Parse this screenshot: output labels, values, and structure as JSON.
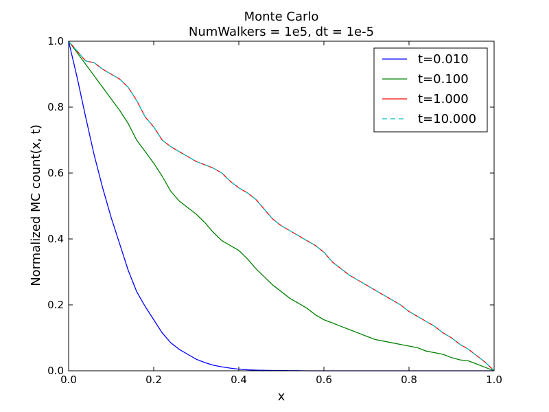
{
  "chart_data": {
    "type": "line",
    "title": "Monte Carlo",
    "subtitle": "NumWalkers = 1e5, dt = 1e-5",
    "xlabel": "x",
    "ylabel": "Normalized MC count(x, t)",
    "xlim": [
      0.0,
      1.0
    ],
    "ylim": [
      0.0,
      1.0
    ],
    "xticks": [
      "0.0",
      "0.2",
      "0.4",
      "0.6",
      "0.8",
      "1.0"
    ],
    "yticks": [
      "0.0",
      "0.2",
      "0.4",
      "0.6",
      "0.8",
      "1.0"
    ],
    "grid": false,
    "legend_position": "top-right",
    "x": [
      0.0,
      0.02,
      0.04,
      0.06,
      0.08,
      0.1,
      0.12,
      0.14,
      0.16,
      0.18,
      0.2,
      0.22,
      0.24,
      0.26,
      0.28,
      0.3,
      0.32,
      0.34,
      0.36,
      0.38,
      0.4,
      0.42,
      0.44,
      0.46,
      0.48,
      0.5,
      0.52,
      0.54,
      0.56,
      0.58,
      0.6,
      0.62,
      0.64,
      0.66,
      0.68,
      0.7,
      0.72,
      0.74,
      0.76,
      0.78,
      0.8,
      0.82,
      0.84,
      0.86,
      0.88,
      0.9,
      0.92,
      0.94,
      0.96,
      0.98,
      1.0
    ],
    "series": [
      {
        "name": "t=0.010",
        "color": "#0000ff",
        "dash": "solid",
        "values": [
          1.0,
          0.89,
          0.77,
          0.655,
          0.555,
          0.465,
          0.385,
          0.305,
          0.24,
          0.195,
          0.155,
          0.115,
          0.085,
          0.065,
          0.05,
          0.035,
          0.025,
          0.017,
          0.012,
          0.008,
          0.005,
          0.003,
          0.002,
          0.0015,
          0.001,
          0.001,
          0.0005,
          0.0005,
          0.0,
          0.0,
          0.0,
          0.0,
          0.0,
          0.0,
          0.0,
          0.0,
          0.0,
          0.0,
          0.0,
          0.0,
          0.0,
          0.0,
          0.0,
          0.0,
          0.0,
          0.0,
          0.0,
          0.0,
          0.0,
          0.0,
          0.0
        ]
      },
      {
        "name": "t=0.100",
        "color": "#008000",
        "dash": "solid",
        "values": [
          1.0,
          0.965,
          0.93,
          0.895,
          0.86,
          0.825,
          0.79,
          0.75,
          0.7,
          0.665,
          0.63,
          0.59,
          0.545,
          0.515,
          0.495,
          0.475,
          0.45,
          0.42,
          0.395,
          0.38,
          0.365,
          0.34,
          0.31,
          0.285,
          0.26,
          0.24,
          0.22,
          0.205,
          0.19,
          0.17,
          0.155,
          0.145,
          0.135,
          0.125,
          0.115,
          0.105,
          0.095,
          0.09,
          0.085,
          0.08,
          0.075,
          0.07,
          0.06,
          0.055,
          0.05,
          0.04,
          0.033,
          0.03,
          0.02,
          0.01,
          0.0
        ]
      },
      {
        "name": "t=1.000",
        "color": "#ff0000",
        "dash": "solid",
        "values": [
          1.0,
          0.97,
          0.94,
          0.935,
          0.915,
          0.9,
          0.885,
          0.86,
          0.82,
          0.77,
          0.74,
          0.7,
          0.68,
          0.665,
          0.65,
          0.635,
          0.625,
          0.615,
          0.6,
          0.575,
          0.555,
          0.54,
          0.52,
          0.49,
          0.46,
          0.44,
          0.425,
          0.41,
          0.395,
          0.38,
          0.36,
          0.33,
          0.31,
          0.29,
          0.275,
          0.26,
          0.245,
          0.23,
          0.215,
          0.2,
          0.18,
          0.165,
          0.15,
          0.135,
          0.115,
          0.1,
          0.08,
          0.065,
          0.045,
          0.025,
          0.0
        ]
      },
      {
        "name": "t=10.000",
        "color": "#00bfbf",
        "dash": "dashed",
        "values": [
          1.0,
          0.97,
          0.94,
          0.935,
          0.915,
          0.9,
          0.885,
          0.86,
          0.82,
          0.77,
          0.74,
          0.7,
          0.68,
          0.665,
          0.65,
          0.635,
          0.625,
          0.615,
          0.6,
          0.575,
          0.555,
          0.54,
          0.52,
          0.49,
          0.46,
          0.44,
          0.425,
          0.41,
          0.395,
          0.38,
          0.36,
          0.33,
          0.31,
          0.29,
          0.275,
          0.26,
          0.245,
          0.23,
          0.215,
          0.2,
          0.18,
          0.165,
          0.15,
          0.135,
          0.115,
          0.1,
          0.08,
          0.065,
          0.045,
          0.025,
          0.0
        ]
      }
    ]
  }
}
